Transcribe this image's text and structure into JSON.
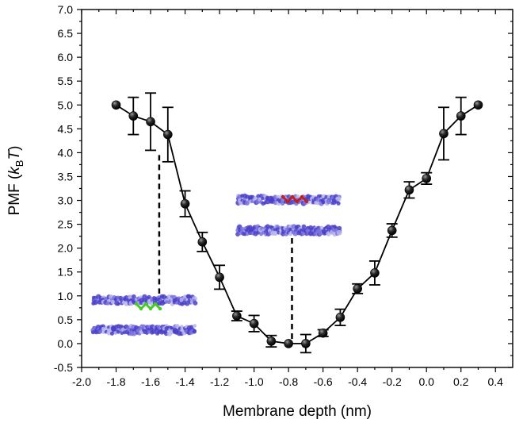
{
  "chart_data": {
    "type": "line",
    "title": "",
    "xlabel": "Membrane depth (nm)",
    "ylabel_parts": {
      "main": "PMF (",
      "k": "k",
      "sub": "B",
      "T": "T",
      "close": ")"
    },
    "xlim": [
      -2.0,
      0.5
    ],
    "ylim": [
      -0.5,
      7.0
    ],
    "x_ticks": [
      -2.0,
      -1.8,
      -1.6,
      -1.4,
      -1.2,
      -1.0,
      -0.8,
      -0.6,
      -0.4,
      -0.2,
      0.0,
      0.2,
      0.4
    ],
    "x_tick_labels": [
      "-2.0",
      "-1.8",
      "-1.6",
      "-1.4",
      "-1.2",
      "-1.0",
      "-0.8",
      "-0.6",
      "-0.4",
      "-0.2",
      "0.0",
      "0.2",
      "0.4"
    ],
    "y_ticks": [
      -0.5,
      0.0,
      0.5,
      1.0,
      1.5,
      2.0,
      2.5,
      3.0,
      3.5,
      4.0,
      4.5,
      5.0,
      5.5,
      6.0,
      6.5,
      7.0
    ],
    "y_tick_labels": [
      "-0.5",
      "0.0",
      "0.5",
      "1.0",
      "1.5",
      "2.0",
      "2.5",
      "3.0",
      "3.5",
      "4.0",
      "4.5",
      "5.0",
      "5.5",
      "6.0",
      "6.5",
      "7.0"
    ],
    "series": [
      {
        "name": "PMF",
        "x": [
          -1.8,
          -1.7,
          -1.6,
          -1.5,
          -1.4,
          -1.3,
          -1.2,
          -1.1,
          -1.0,
          -0.9,
          -0.8,
          -0.7,
          -0.6,
          -0.5,
          -0.4,
          -0.3,
          -0.2,
          -0.1,
          0.0,
          0.1,
          0.2,
          0.3
        ],
        "y": [
          5.0,
          4.77,
          4.65,
          4.38,
          2.93,
          2.13,
          1.39,
          0.58,
          0.42,
          0.05,
          0.0,
          0.0,
          0.22,
          0.55,
          1.15,
          1.48,
          2.37,
          3.22,
          3.46,
          4.4,
          4.77,
          5.0
        ],
        "error": [
          0.0,
          0.39,
          0.6,
          0.57,
          0.27,
          0.2,
          0.25,
          0.1,
          0.17,
          0.12,
          0.0,
          0.19,
          0.07,
          0.17,
          0.1,
          0.25,
          0.14,
          0.17,
          0.12,
          0.55,
          0.39,
          0.0
        ]
      }
    ],
    "annotations": [
      {
        "name": "membrane-snapshot-surface",
        "x": -1.55,
        "y_from": 1.0,
        "y_to": 3.95,
        "peptide_color": "#44cc22"
      },
      {
        "name": "membrane-snapshot-center",
        "x": -0.78,
        "y_from": 0.0,
        "y_to": 2.2,
        "peptide_color": "#bb2222"
      }
    ],
    "colors": {
      "marker_fill": "#1a1a1a",
      "line": "#000000",
      "lipid_dark": "#4a3fc9",
      "lipid_mid": "#7b73dd",
      "lipid_light": "#b9b5ec"
    },
    "grid": false,
    "legend": "none"
  }
}
